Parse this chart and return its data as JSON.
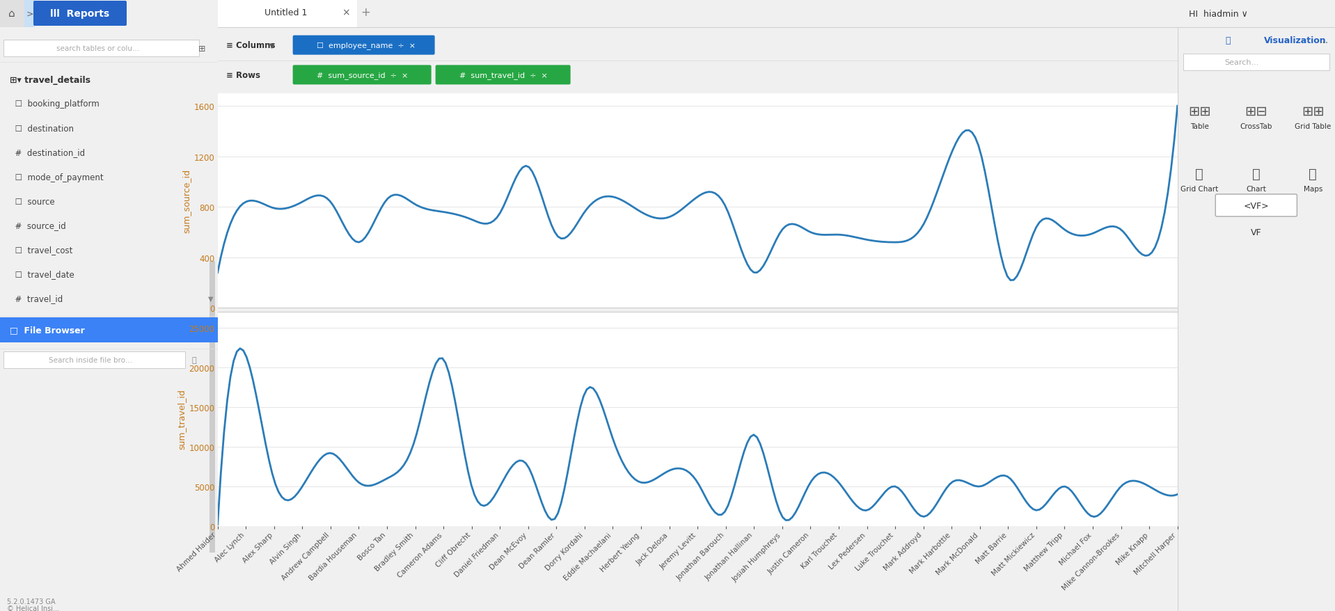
{
  "employee_names": [
    "Ahmed Haider",
    "Alec Lynch",
    "Alex Sharp",
    "Alvin Singh",
    "Andrew Campbell",
    "Bardia Houseman",
    "Bosco Tan",
    "Bradley Smith",
    "Cameron Adams",
    "Cliff Obrecht",
    "Daniel Friedman",
    "Dean McEvoy",
    "Dean Ramler",
    "Dorry Kordahi",
    "Eddie Machaelani",
    "Herbert Yeung",
    "Jack Delosa",
    "Jeremy Levitt",
    "Jonathan Barouch",
    "Jonathan Hallinan",
    "Josiah Humphreys",
    "Justin Cameron",
    "Karl Trouchet",
    "Lex Pedersen",
    "Luke Trouchet",
    "Mark Addroyd",
    "Mark Harbottle",
    "Mark McDonald",
    "Matt Barrie",
    "Matt Mickiewicz",
    "Matthew Tripp",
    "Michael Fox",
    "Mike Cannon-Brookes",
    "Mike Knapp",
    "Mitchell Harper"
  ],
  "sum_source_id": [
    280,
    840,
    790,
    840,
    840,
    520,
    860,
    820,
    760,
    700,
    750,
    1120,
    580,
    760,
    880,
    760,
    720,
    880,
    800,
    280,
    620,
    600,
    580,
    540,
    520,
    660,
    1230,
    1250,
    240,
    640,
    620,
    590,
    620,
    420,
    1600
  ],
  "sum_travel_id": [
    200,
    21500,
    5800,
    5000,
    9200,
    5500,
    6000,
    11000,
    21000,
    5000,
    5000,
    7500,
    1200,
    16700,
    11000,
    5500,
    7000,
    5500,
    2000,
    11500,
    1200,
    5500,
    5500,
    2000,
    5000,
    1200,
    5500,
    5000,
    6200,
    2000,
    5000,
    1200,
    5000,
    5000,
    4000
  ],
  "line_color": "#2b7cb8",
  "line_width": 2.0,
  "top_ylabel": "sum_source_id",
  "bottom_ylabel": "sum_travel_id",
  "xlabel": "employee_name",
  "top_yticks": [
    0,
    400,
    800,
    1200,
    1600
  ],
  "bottom_yticks": [
    0,
    5000,
    10000,
    15000,
    20000,
    25000
  ],
  "bg_color": "#ffffff",
  "ylabel_color": "#c47a1e",
  "tick_color": "#c47a1e",
  "grid_color": "#e0e0e0",
  "top_nav_bg": "#c9e0f5",
  "left_panel_bg": "#ffffff",
  "center_bg": "#ffffff",
  "toolbar_bg": "#f5f5f5",
  "right_panel_bg": "#ffffff",
  "version_text": "5.2.0.1473 GA",
  "helical_text": "Helical Insi...",
  "viz_label": "Visualization"
}
